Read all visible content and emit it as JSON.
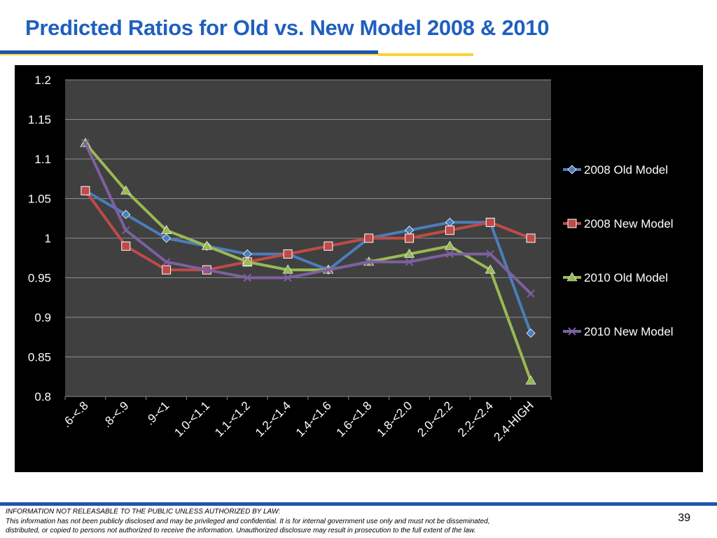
{
  "slide": {
    "title": "Predicted Ratios for Old vs. New Model  2008 & 2010",
    "page_number": "39"
  },
  "footer": {
    "line1": "INFORMATION NOT RELEASABLE TO THE PUBLIC UNLESS AUTHORIZED BY LAW:",
    "line2": "This information has not been publicly disclosed and may be privileged and confidential.  It is for internal government use only and must not be disseminated,",
    "line3": "distributed, or copied to persons not authorized to receive the information.  Unauthorized disclosure may result in prosecution to the full extent of the law."
  },
  "colors": {
    "title": "#1f5fbf",
    "rule_blue": "#1f55a8",
    "rule_yellow": "#f5d33a",
    "panel_bg": "#000000",
    "plot_bg": "#404040",
    "grid": "#8c8c8c",
    "text": "#ffffff"
  },
  "chart_data": {
    "type": "line",
    "title": "",
    "xlabel": "",
    "ylabel": "",
    "categories": [
      ".6-<.8",
      ".8-<.9",
      ".9-<1",
      "1.0-<1.1",
      "1.1-<1.2",
      "1.2-<1.4",
      "1.4-<1.6",
      "1.6-<1.8",
      "1.8-<2.0",
      "2.0-<2.2",
      "2.2-<2.4",
      "2.4-HIGH"
    ],
    "ylim": [
      0.8,
      1.2
    ],
    "yticks": [
      0.8,
      0.85,
      0.9,
      0.95,
      1,
      1.05,
      1.1,
      1.15,
      1.2
    ],
    "ytick_labels": [
      "0.8",
      "0.85",
      "0.9",
      "0.95",
      "1",
      "1.05",
      "1.1",
      "1.15",
      "1.2"
    ],
    "grid": true,
    "legend_position": "right",
    "series": [
      {
        "name": "2008 Old Model",
        "color": "#4a7ebb",
        "marker": "diamond",
        "values": [
          1.06,
          1.03,
          1.0,
          0.99,
          0.98,
          0.98,
          0.96,
          1.0,
          1.01,
          1.02,
          1.02,
          0.88
        ]
      },
      {
        "name": "2008 New Model",
        "color": "#be4b48",
        "marker": "square",
        "values": [
          1.06,
          0.99,
          0.96,
          0.96,
          0.97,
          0.98,
          0.99,
          1.0,
          1.0,
          1.01,
          1.02,
          1.0
        ]
      },
      {
        "name": "2010 Old Model",
        "color": "#98b954",
        "marker": "triangle",
        "values": [
          1.12,
          1.06,
          1.01,
          0.99,
          0.97,
          0.96,
          0.96,
          0.97,
          0.98,
          0.99,
          0.96,
          0.82
        ]
      },
      {
        "name": "2010 New Model",
        "color": "#7d60a0",
        "marker": "x",
        "values": [
          1.12,
          1.01,
          0.97,
          0.96,
          0.95,
          0.95,
          0.96,
          0.97,
          0.97,
          0.98,
          0.98,
          0.93
        ]
      }
    ]
  }
}
